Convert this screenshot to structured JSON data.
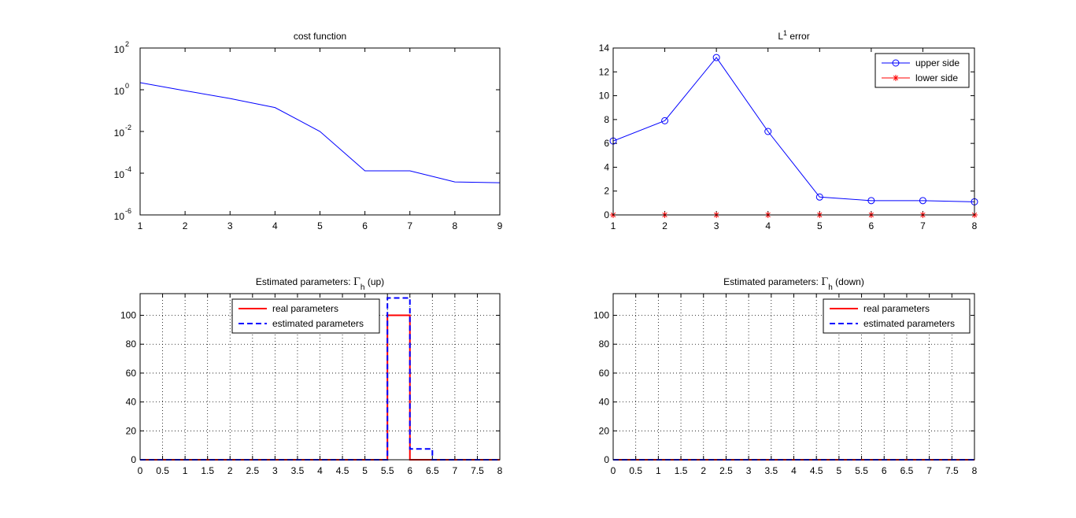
{
  "chart_data": [
    {
      "type": "line",
      "title": "cost function",
      "title_parts": [],
      "xlabel": "",
      "ylabel": "",
      "yscale": "log",
      "xlim": [
        1,
        9
      ],
      "ylim": [
        1e-06,
        100
      ],
      "xticks": [
        "1",
        "2",
        "3",
        "4",
        "5",
        "6",
        "7",
        "8",
        "9"
      ],
      "ytick_values": [
        1e-06,
        0.0001,
        0.01,
        1,
        100
      ],
      "ytick_labels": [
        {
          "base": "10",
          "exp": "-6"
        },
        {
          "base": "10",
          "exp": "-4"
        },
        {
          "base": "10",
          "exp": "-2"
        },
        {
          "base": "10",
          "exp": "0"
        },
        {
          "base": "10",
          "exp": "2"
        }
      ],
      "grid": false,
      "series": [
        {
          "color": "#0000ff",
          "line": "solid",
          "marker": "none",
          "x": [
            1,
            2,
            3,
            4,
            5,
            6,
            7,
            8,
            9
          ],
          "y": [
            2.2,
            0.9,
            0.38,
            0.14,
            0.01,
            0.00013,
            0.00013,
            3.8e-05,
            3.5e-05
          ]
        }
      ]
    },
    {
      "type": "line",
      "title": "",
      "title_parts": [
        {
          "text": "L"
        },
        {
          "text": "1",
          "sup": true
        },
        {
          "text": " error"
        }
      ],
      "xlabel": "",
      "ylabel": "",
      "xlim": [
        1,
        8
      ],
      "ylim": [
        0,
        14
      ],
      "xticks": [
        "1",
        "2",
        "3",
        "4",
        "5",
        "6",
        "7",
        "8"
      ],
      "yticks": [
        "0",
        "2",
        "4",
        "6",
        "8",
        "10",
        "12",
        "14"
      ],
      "grid": false,
      "legend": "top-right",
      "series": [
        {
          "name": "upper side",
          "color": "#0000ff",
          "line": "solid",
          "marker": "circle",
          "x": [
            1,
            2,
            3,
            4,
            5,
            6,
            7,
            8
          ],
          "y": [
            6.2,
            7.9,
            13.2,
            7.0,
            1.5,
            1.2,
            1.2,
            1.1
          ]
        },
        {
          "name": "lower side",
          "color": "#ff0000",
          "line": "solid",
          "marker": "star",
          "x": [
            1,
            2,
            3,
            4,
            5,
            6,
            7,
            8
          ],
          "y": [
            0,
            0,
            0,
            0,
            0,
            0,
            0,
            0
          ]
        }
      ]
    },
    {
      "type": "line",
      "title": "",
      "title_parts": [
        {
          "text": "Estimated parameters: "
        },
        {
          "text": "Γ",
          "serif": true
        },
        {
          "text": "h",
          "sub": true
        },
        {
          "text": " (up)"
        }
      ],
      "xlabel": "",
      "ylabel": "",
      "xlim": [
        0,
        8
      ],
      "ylim": [
        0,
        115
      ],
      "xticks": [
        "0",
        "0.5",
        "1",
        "1.5",
        "2",
        "2.5",
        "3",
        "3.5",
        "4",
        "4.5",
        "5",
        "5.5",
        "6",
        "6.5",
        "7",
        "7.5",
        "8"
      ],
      "yticks": [
        "0",
        "20",
        "40",
        "60",
        "80",
        "100"
      ],
      "grid": true,
      "legend": "top-center",
      "series": [
        {
          "name": "real parameters",
          "color": "#ff0000",
          "line": "solid",
          "marker": "none",
          "x": [
            0,
            5.5,
            5.5,
            6,
            6,
            8
          ],
          "y": [
            0,
            0,
            100,
            100,
            0,
            0
          ]
        },
        {
          "name": "estimated parameters",
          "color": "#0000ff",
          "line": "dashed",
          "marker": "none",
          "x": [
            0,
            5.5,
            5.5,
            6,
            6,
            6.5,
            6.5,
            8
          ],
          "y": [
            0,
            0,
            112,
            112,
            7.5,
            7.5,
            0,
            0
          ]
        }
      ]
    },
    {
      "type": "line",
      "title": "",
      "title_parts": [
        {
          "text": "Estimated parameters: "
        },
        {
          "text": "Γ",
          "serif": true
        },
        {
          "text": "h",
          "sub": true
        },
        {
          "text": " (down)"
        }
      ],
      "xlabel": "",
      "ylabel": "",
      "xlim": [
        0,
        8
      ],
      "ylim": [
        0,
        115
      ],
      "xticks": [
        "0",
        "0.5",
        "1",
        "1.5",
        "2",
        "2.5",
        "3",
        "3.5",
        "4",
        "4.5",
        "5",
        "5.5",
        "6",
        "6.5",
        "7",
        "7.5",
        "8"
      ],
      "yticks": [
        "0",
        "20",
        "40",
        "60",
        "80",
        "100"
      ],
      "grid": true,
      "legend": "top-right",
      "series": [
        {
          "name": "real parameters",
          "color": "#ff0000",
          "line": "solid",
          "marker": "none",
          "x": [
            0,
            8
          ],
          "y": [
            0,
            0
          ]
        },
        {
          "name": "estimated parameters",
          "color": "#0000ff",
          "line": "dashed",
          "marker": "none",
          "x": [
            0,
            8
          ],
          "y": [
            0,
            0
          ]
        }
      ]
    }
  ]
}
